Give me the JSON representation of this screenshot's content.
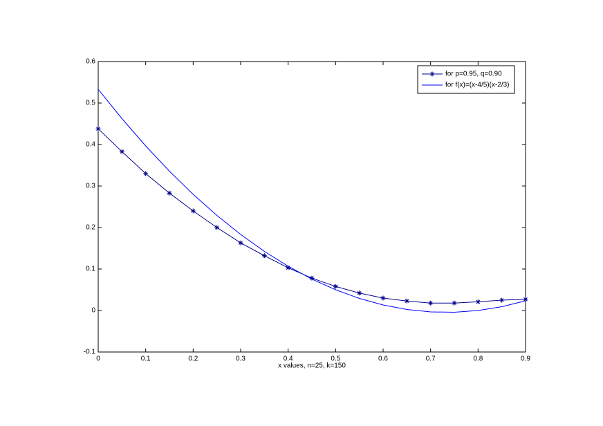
{
  "chart_data": {
    "type": "line",
    "xlabel": "x values, n=25, k=150",
    "x": [
      0,
      0.05,
      0.1,
      0.15,
      0.2,
      0.25,
      0.3,
      0.35,
      0.4,
      0.45,
      0.5,
      0.55,
      0.6,
      0.65,
      0.7,
      0.75,
      0.8,
      0.85,
      0.9
    ],
    "series": [
      {
        "name": "for p=0.95, q=0.90",
        "color": "#00008b",
        "marker": "star",
        "values": [
          0.438,
          0.383,
          0.33,
          0.283,
          0.24,
          0.2,
          0.163,
          0.132,
          0.103,
          0.078,
          0.058,
          0.042,
          0.03,
          0.023,
          0.018,
          0.018,
          0.021,
          0.025,
          0.027
        ]
      },
      {
        "name": "for f(x)=(x-4/5)(x-2/3)",
        "color": "#0000ff",
        "values": [
          0.5333,
          0.4625,
          0.3967,
          0.3358,
          0.28,
          0.2292,
          0.1833,
          0.1425,
          0.1067,
          0.0758,
          0.05,
          0.0292,
          0.0133,
          0.0025,
          -0.0033,
          -0.0042,
          0,
          0.0092,
          0.0233
        ]
      }
    ],
    "xlim": [
      0,
      0.9
    ],
    "ylim": [
      -0.1,
      0.6
    ],
    "xticks": [
      0,
      0.1,
      0.2,
      0.3,
      0.4,
      0.5,
      0.6,
      0.7,
      0.8,
      0.9
    ],
    "yticks": [
      -0.1,
      0,
      0.1,
      0.2,
      0.3,
      0.4,
      0.5,
      0.6
    ],
    "legend": "top-right"
  }
}
